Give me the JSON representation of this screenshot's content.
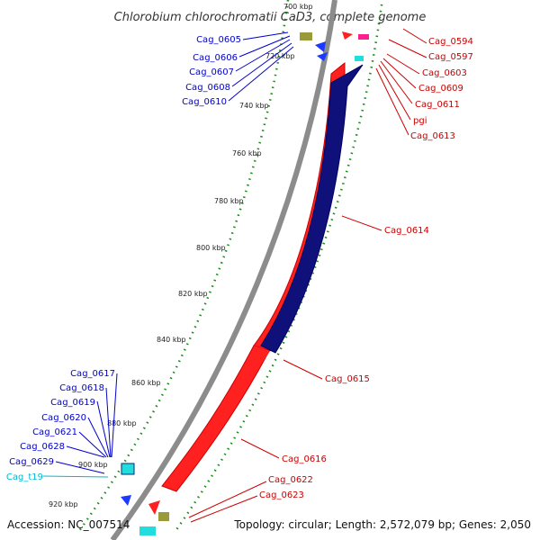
{
  "title": "Chlorobium chlorochromatii CaD3, complete genome",
  "footer": {
    "accession": "Accession: NC_007514",
    "summary": "Topology: circular; Length: 2,572,079 bp; Genes: 2,050"
  },
  "colors": {
    "forward_gene": "#ff2020",
    "reverse_gene": "#10107a",
    "backbone": "#8c8c8c",
    "ticks": "#1a8a1a",
    "label_forward": "#cc0000",
    "label_reverse": "#0000cc",
    "label_trna": "#00b8d0"
  },
  "axis": {
    "unit": "kbp",
    "visible_ticks_kbp": [
      700,
      720,
      740,
      760,
      780,
      800,
      820,
      840,
      860,
      880,
      900,
      920
    ],
    "tick_labels": [
      "700 kbp",
      "720 kbp",
      "740 kbp",
      "760 kbp",
      "780 kbp",
      "800 kbp",
      "820 kbp",
      "840 kbp",
      "860 kbp",
      "880 kbp",
      "900 kbp",
      "920 kbp"
    ]
  },
  "genes_right": [
    {
      "label": "Cag_0594"
    },
    {
      "label": "Cag_0597"
    },
    {
      "label": "Cag_0603"
    },
    {
      "label": "Cag_0609"
    },
    {
      "label": "Cag_0611"
    },
    {
      "label": "pgi"
    },
    {
      "label": "Cag_0613"
    },
    {
      "label": "Cag_0614"
    },
    {
      "label": "Cag_0615"
    },
    {
      "label": "Cag_0616"
    },
    {
      "label": "Cag_0622"
    },
    {
      "label": "Cag_0623"
    }
  ],
  "genes_left": [
    {
      "label": "Cag_0605"
    },
    {
      "label": "Cag_0606"
    },
    {
      "label": "Cag_0607"
    },
    {
      "label": "Cag_0608"
    },
    {
      "label": "Cag_0610"
    },
    {
      "label": "Cag_0617"
    },
    {
      "label": "Cag_0618"
    },
    {
      "label": "Cag_0619"
    },
    {
      "label": "Cag_0620"
    },
    {
      "label": "Cag_0621"
    },
    {
      "label": "Cag_0628"
    },
    {
      "label": "Cag_0629"
    },
    {
      "label": "Cag_t19"
    }
  ]
}
